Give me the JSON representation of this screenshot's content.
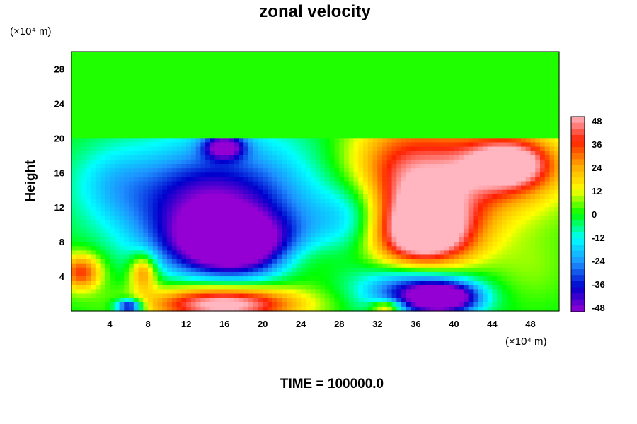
{
  "chart_data": {
    "type": "heatmap",
    "title": "zonal velocity",
    "ylabel": "Height",
    "y_unit": "(×10⁴ m)",
    "x_unit": "(×10⁴ m)",
    "footer": "TIME = 100000.0",
    "xlim": [
      0,
      51
    ],
    "ylim": [
      0,
      30
    ],
    "x_ticks": [
      "4",
      "8",
      "12",
      "16",
      "20",
      "24",
      "28",
      "32",
      "36",
      "40",
      "44",
      "48"
    ],
    "y_ticks": [
      "4",
      "8",
      "12",
      "16",
      "20",
      "24",
      "28"
    ],
    "colorbar_ticks": [
      "48",
      "36",
      "24",
      "12",
      "0",
      "-12",
      "-24",
      "-36",
      "-48"
    ],
    "colorbar_range": [
      -48,
      48
    ],
    "palette": [
      "#9400d3",
      "#0000cd",
      "#1e90ff",
      "#00ffff",
      "#00ff00",
      "#ffff00",
      "#ffa500",
      "#ff2000",
      "#ffb6c1"
    ],
    "background_value": 0,
    "features": [
      {
        "x": 17,
        "y": 7.5,
        "sx": 4.5,
        "sy": 2.5,
        "value": -55
      },
      {
        "x": 14,
        "y": 12,
        "sx": 6,
        "sy": 4,
        "value": -30
      },
      {
        "x": 17,
        "y": 14,
        "sx": 8,
        "sy": 6,
        "value": -18
      },
      {
        "x": 30,
        "y": 11,
        "sx": 3,
        "sy": 3,
        "value": -22
      },
      {
        "x": 16,
        "y": 19,
        "sx": 1.5,
        "sy": 1,
        "value": -40
      },
      {
        "x": 37,
        "y": 9,
        "sx": 3.8,
        "sy": 3.2,
        "value": 60
      },
      {
        "x": 41,
        "y": 16,
        "sx": 7,
        "sy": 4,
        "value": 36
      },
      {
        "x": 46,
        "y": 17,
        "sx": 3,
        "sy": 2,
        "value": 40
      },
      {
        "x": 34,
        "y": 15,
        "sx": 4,
        "sy": 6,
        "value": 20
      },
      {
        "x": 16,
        "y": 0.8,
        "sx": 5.5,
        "sy": 1.5,
        "value": 55
      },
      {
        "x": 36,
        "y": 2.5,
        "sx": 4,
        "sy": 2.2,
        "value": -42
      },
      {
        "x": 39,
        "y": 1.5,
        "sx": 2.5,
        "sy": 1.2,
        "value": -50
      },
      {
        "x": 1,
        "y": 4.5,
        "sx": 1.5,
        "sy": 1.5,
        "value": 35
      },
      {
        "x": 7.5,
        "y": 4.5,
        "sx": 1,
        "sy": 1.5,
        "value": 30
      },
      {
        "x": 4,
        "y": 15,
        "sx": 3,
        "sy": 3,
        "value": -10
      },
      {
        "x": 24,
        "y": 6,
        "sx": 3,
        "sy": 2,
        "value": 12
      },
      {
        "x": 48,
        "y": 5,
        "sx": 3,
        "sy": 3,
        "value": 6
      },
      {
        "x": 6,
        "y": 0.5,
        "sx": 1,
        "sy": 0.6,
        "value": -45
      },
      {
        "x": 33,
        "y": 0.4,
        "sx": 1.2,
        "sy": 0.6,
        "value": 30
      }
    ]
  }
}
